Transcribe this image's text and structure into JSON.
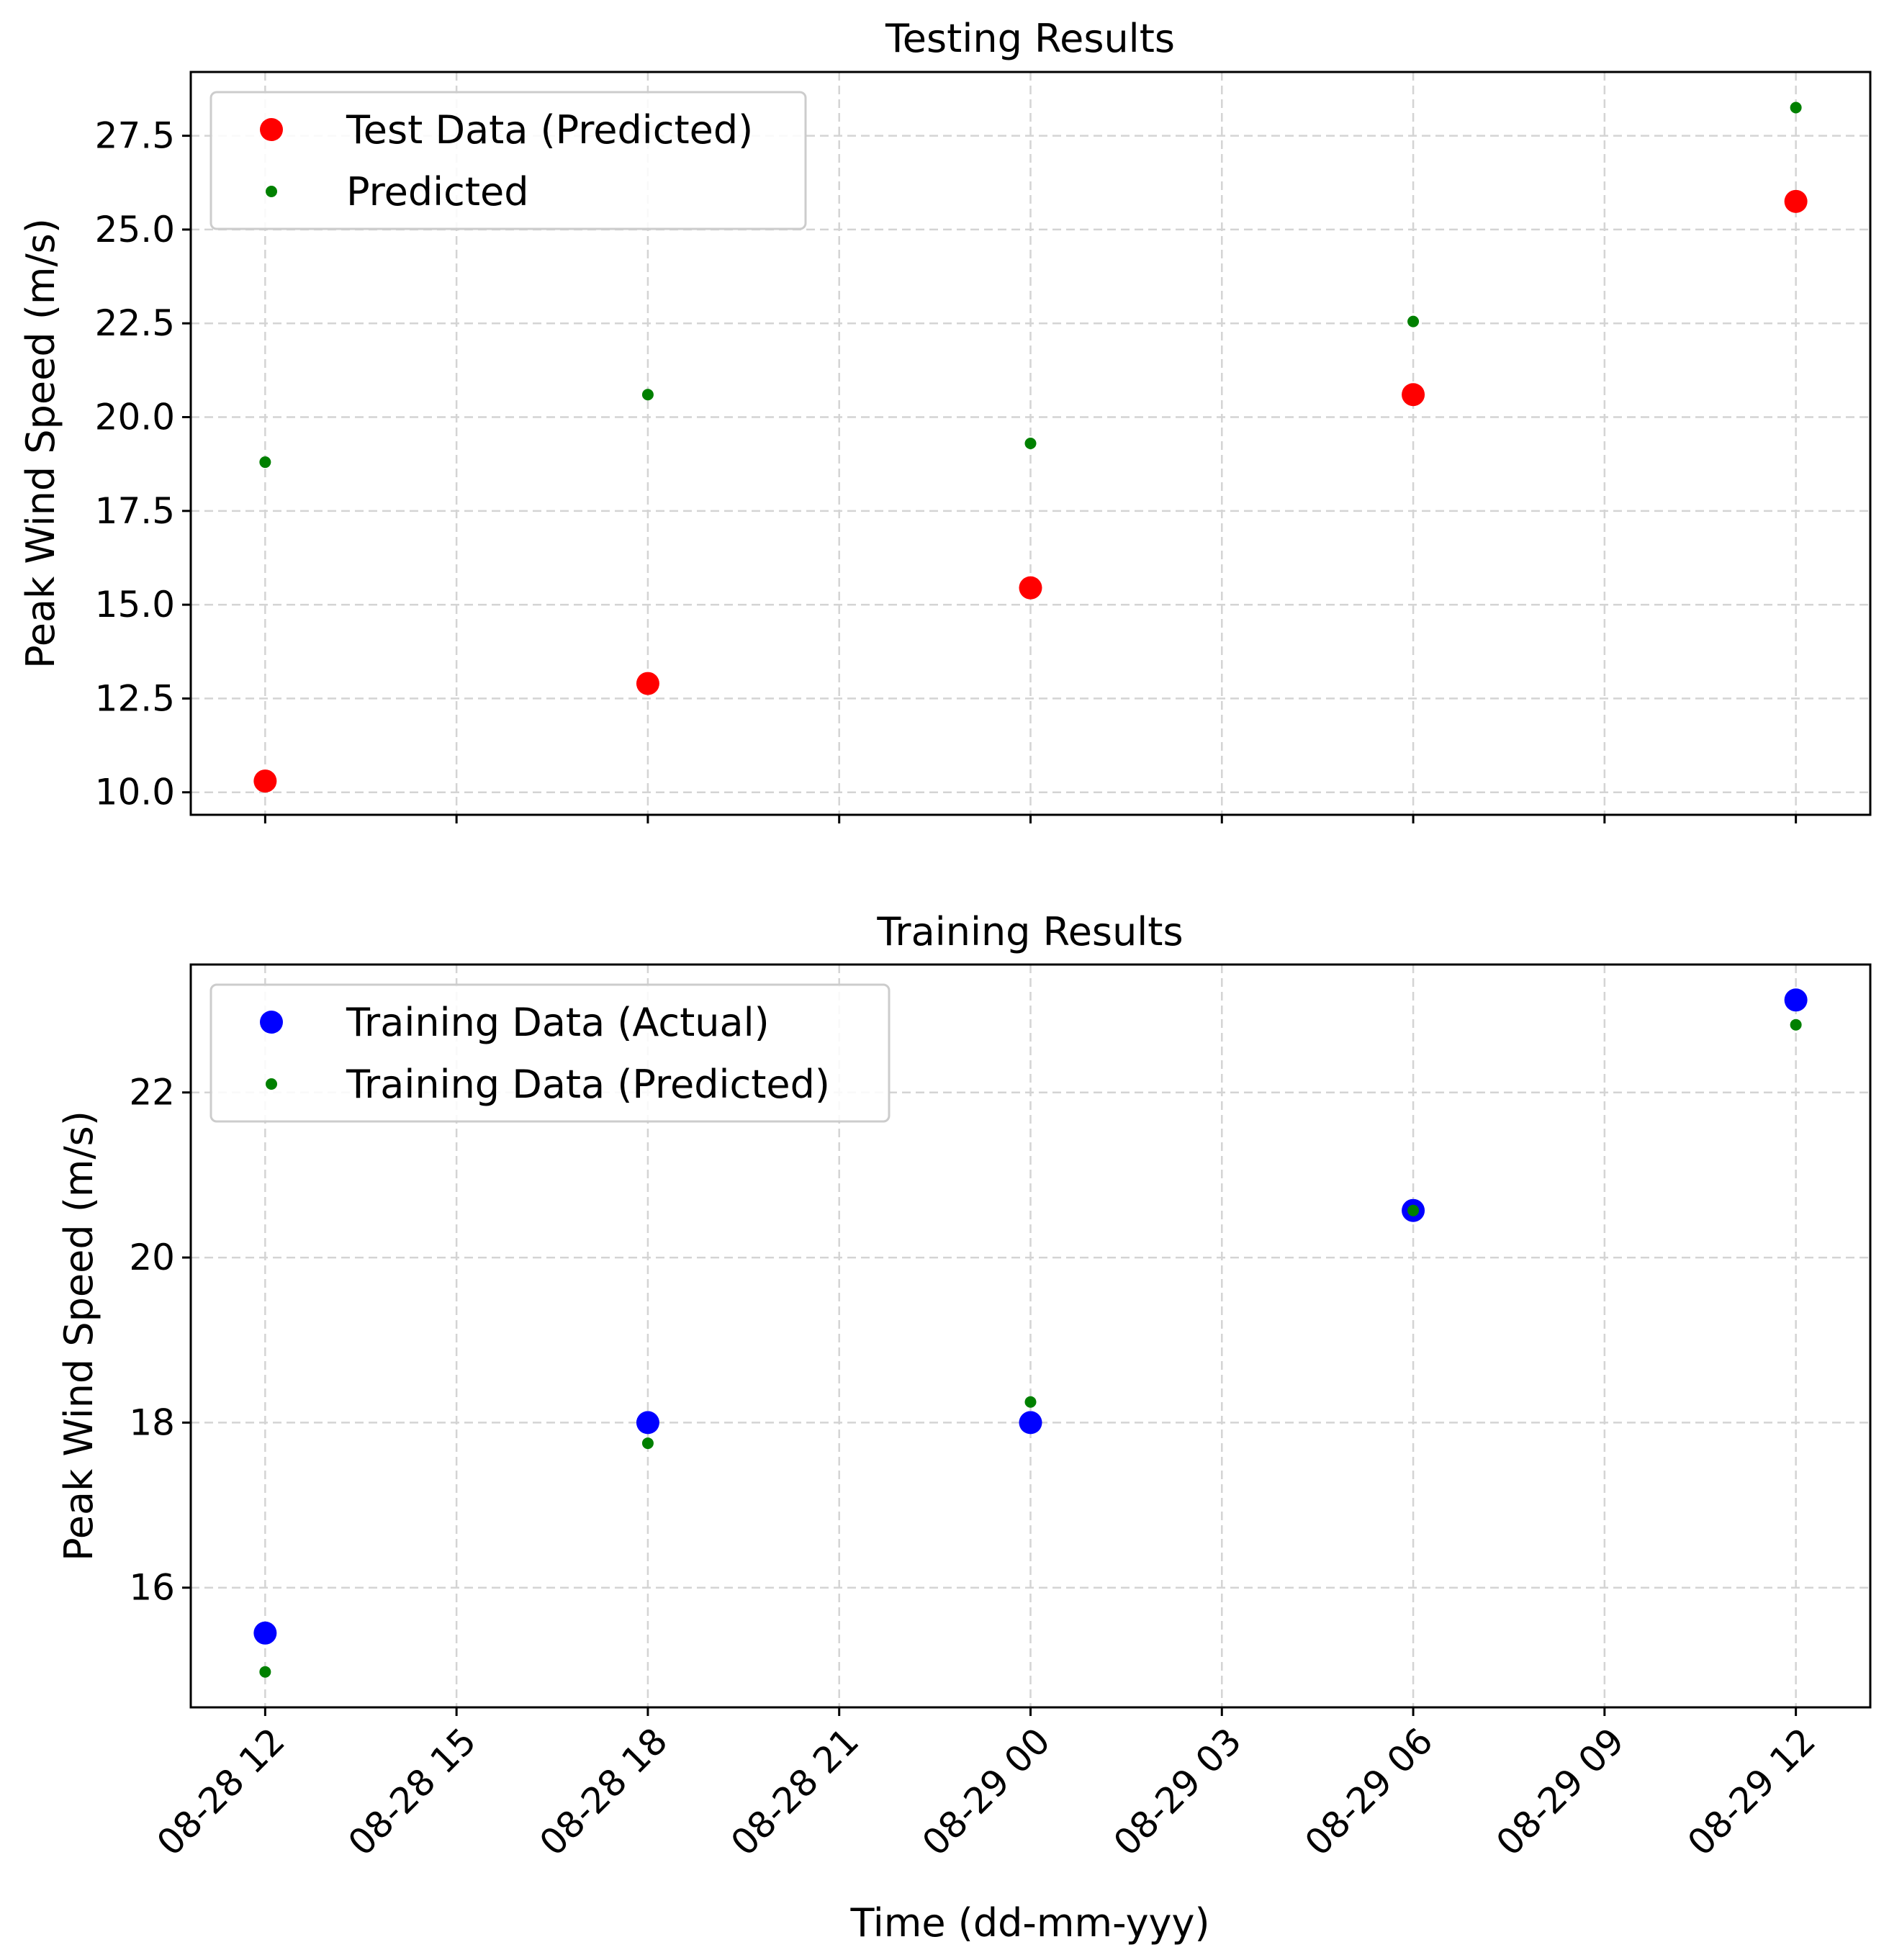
{
  "chart_data": [
    {
      "type": "scatter",
      "title": "Testing Results",
      "ylabel": "Peak Wind Speed (m/s)",
      "xlabel": "",
      "ylim": [
        9.4,
        29.2
      ],
      "yticks": [
        10.0,
        12.5,
        15.0,
        17.5,
        20.0,
        22.5,
        25.0,
        27.5
      ],
      "ytick_labels": [
        "10.0",
        "12.5",
        "15.0",
        "17.5",
        "20.0",
        "22.5",
        "25.0",
        "27.5"
      ],
      "grid": true,
      "legend_position": "upper-left",
      "x": [
        "2024-08-28 12:00",
        "2024-08-28 18:00",
        "2024-08-29 00:00",
        "2024-08-29 06:00",
        "2024-08-29 12:00"
      ],
      "series": [
        {
          "name": "Test Data (Predicted)",
          "color": "#ff0000",
          "marker": "large",
          "values": [
            10.3,
            12.9,
            15.45,
            20.6,
            25.75
          ]
        },
        {
          "name": "Predicted",
          "color": "#008000",
          "marker": "small",
          "values": [
            18.8,
            20.6,
            19.3,
            22.55,
            28.25
          ]
        }
      ]
    },
    {
      "type": "scatter",
      "title": "Training Results",
      "ylabel": "Peak Wind Speed (m/s)",
      "xlabel": "Time (dd-mm-yyy)",
      "ylim": [
        14.55,
        23.55
      ],
      "yticks": [
        16,
        18,
        20,
        22
      ],
      "ytick_labels": [
        "16",
        "18",
        "20",
        "22"
      ],
      "grid": true,
      "legend_position": "upper-left",
      "x": [
        "2024-08-28 12:00",
        "2024-08-28 18:00",
        "2024-08-29 00:00",
        "2024-08-29 06:00",
        "2024-08-29 12:00"
      ],
      "series": [
        {
          "name": "Training Data (Actual)",
          "color": "#0000ff",
          "marker": "large",
          "values": [
            15.45,
            18.0,
            18.0,
            20.57,
            23.12
          ]
        },
        {
          "name": "Training Data (Predicted)",
          "color": "#008000",
          "marker": "small",
          "values": [
            14.98,
            17.75,
            18.25,
            20.57,
            22.82
          ]
        }
      ]
    }
  ],
  "x_axis": {
    "range": [
      "2024-08-28 10:50",
      "2024-08-29 13:10"
    ],
    "ticks": [
      "2024-08-28 12:00",
      "2024-08-28 15:00",
      "2024-08-28 18:00",
      "2024-08-28 21:00",
      "2024-08-29 00:00",
      "2024-08-29 03:00",
      "2024-08-29 06:00",
      "2024-08-29 09:00",
      "2024-08-29 12:00"
    ],
    "tick_labels": [
      "08-28 12",
      "08-28 15",
      "08-28 18",
      "08-28 21",
      "08-29 00",
      "08-29 03",
      "08-29 06",
      "08-29 09",
      "08-29 12"
    ]
  }
}
